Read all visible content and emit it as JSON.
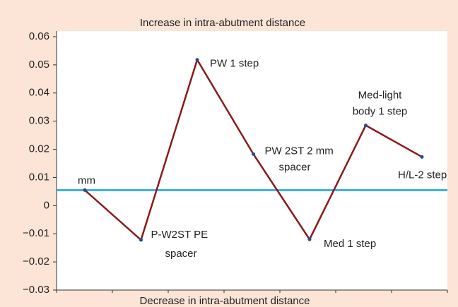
{
  "chart_data": {
    "type": "line",
    "top_label": "Increase in intra-abutment distance",
    "bottom_label": "Decrease in intra-abutment distance",
    "labels": [
      [
        "mm"
      ],
      [
        "P-W2ST PE",
        "spacer"
      ],
      [
        "PW 1 step"
      ],
      [
        "PW 2ST 2 mm",
        "spacer"
      ],
      [
        "Med 1 step"
      ],
      [
        "Med-light",
        "body 1 step"
      ],
      [
        "H/L-2 step"
      ]
    ],
    "values": [
      0.0055,
      -0.0122,
      0.0518,
      0.0183,
      -0.012,
      0.0285,
      0.0173
    ],
    "color": "#8b1a1a",
    "marker_color": "#1f4e9a",
    "reference_line": 0.0055,
    "reference_color": "#1aa6e0",
    "ylim": [
      -0.03,
      0.06
    ],
    "yticks": [
      {
        "value": 0.06,
        "label": "0.06"
      },
      {
        "value": 0.05,
        "label": "0.05"
      },
      {
        "value": 0.04,
        "label": "0.04"
      },
      {
        "value": 0.03,
        "label": "0.03"
      },
      {
        "value": 0.02,
        "label": "0.02"
      },
      {
        "value": 0.01,
        "label": "0.01"
      },
      0,
      {
        "value": -0.01,
        "label": "−0.01"
      },
      {
        "value": -0.02,
        "label": "−0.02"
      },
      {
        "value": -0.03,
        "label": "−0.03"
      }
    ]
  }
}
